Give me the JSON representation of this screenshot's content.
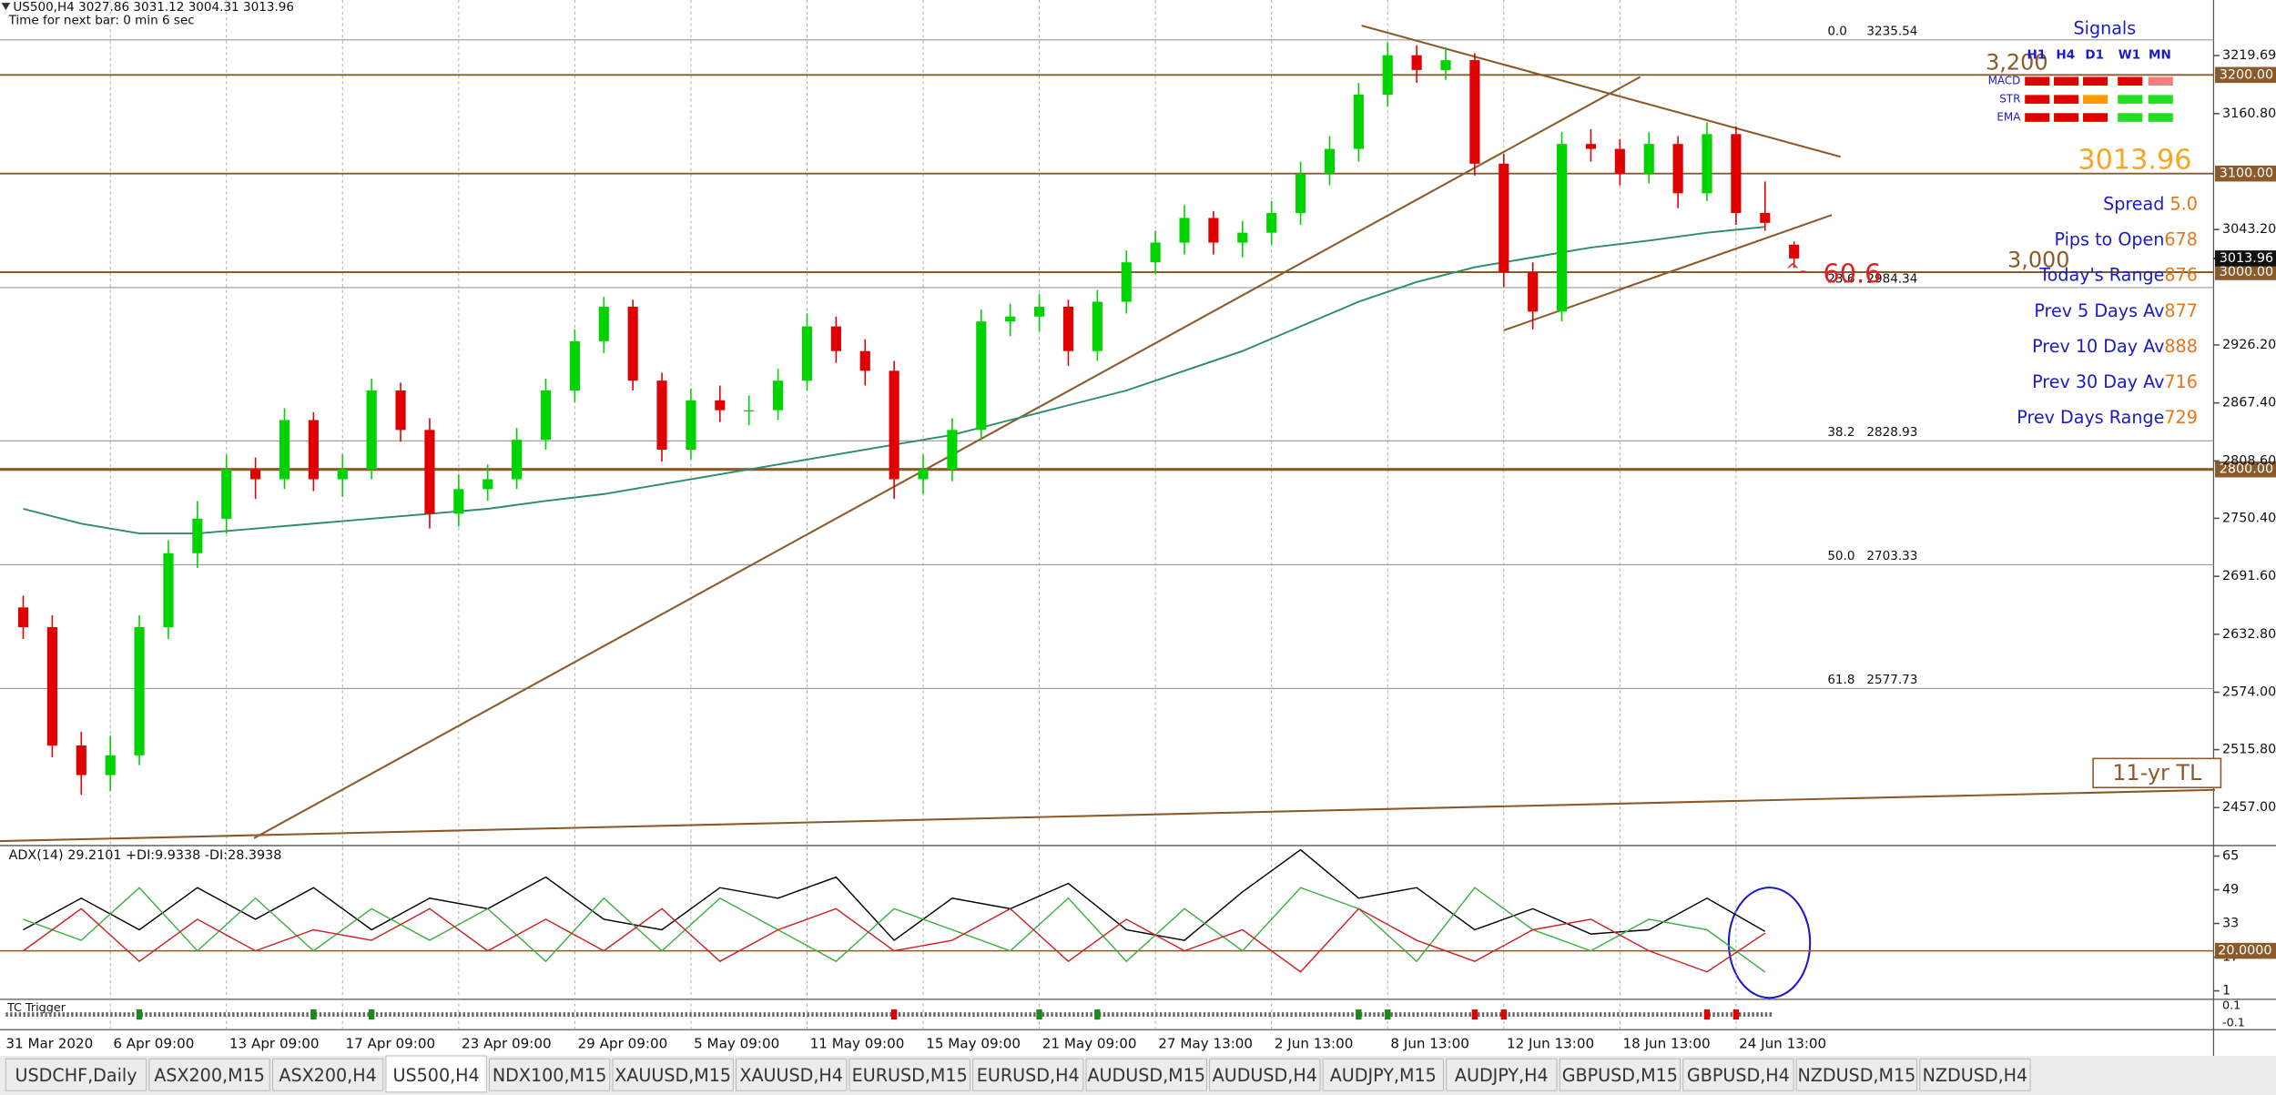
{
  "window": {
    "header": {
      "symbol": "US500,H4",
      "timer": "Time for next bar: 0 min 6 sec"
    },
    "tabs": [
      "USDCHF,Daily",
      "ASX200,M15",
      "ASX200,H4",
      "US500,H4",
      "NDX100,M15",
      "XAUUSD,M15",
      "XAUUSD,H4",
      "EURUSD,M15",
      "EURUSD,H4",
      "AUDUSD,M15",
      "AUDUSD,H4",
      "AUDJPY,M15",
      "AUDJPY,H4",
      "GBPUSD,M15",
      "GBPUSD,H4",
      "NZDUSD,M15",
      "NZDUSD,H4"
    ],
    "active_tab": 3
  },
  "chart_data": [
    {
      "type": "candlestick",
      "categories": [
        "31 Mar 2020",
        null,
        null,
        "6 Apr 09:00",
        null,
        null,
        null,
        "13 Apr 09:00",
        null,
        null,
        null,
        "17 Apr 09:00",
        null,
        null,
        null,
        "23 Apr 09:00",
        null,
        null,
        null,
        "29 Apr 09:00",
        null,
        null,
        null,
        "5 May 09:00",
        null,
        null,
        null,
        "11 May 09:00",
        null,
        null,
        null,
        "15 May 09:00",
        null,
        null,
        null,
        "21 May 09:00",
        null,
        null,
        null,
        "27 May 13:00",
        null,
        null,
        null,
        "2 Jun 13:00",
        null,
        null,
        null,
        "8 Jun 13:00",
        null,
        null,
        null,
        "12 Jun 13:00",
        null,
        null,
        null,
        "18 Jun 13:00",
        null,
        null,
        null,
        "24 Jun 13:00",
        null,
        null
      ],
      "candles": [
        [
          2660,
          2672,
          2628,
          2640
        ],
        [
          2640,
          2652,
          2508,
          2520
        ],
        [
          2520,
          2534,
          2470,
          2490
        ],
        [
          2490,
          2530,
          2474,
          2510
        ],
        [
          2510,
          2652,
          2500,
          2640
        ],
        [
          2640,
          2728,
          2628,
          2715
        ],
        [
          2715,
          2768,
          2700,
          2750
        ],
        [
          2750,
          2815,
          2735,
          2800
        ],
        [
          2800,
          2812,
          2770,
          2790
        ],
        [
          2790,
          2862,
          2780,
          2850
        ],
        [
          2850,
          2858,
          2778,
          2790
        ],
        [
          2790,
          2815,
          2772,
          2800
        ],
        [
          2800,
          2892,
          2790,
          2880
        ],
        [
          2880,
          2888,
          2828,
          2840
        ],
        [
          2840,
          2852,
          2740,
          2755
        ],
        [
          2755,
          2795,
          2742,
          2780
        ],
        [
          2780,
          2805,
          2768,
          2790
        ],
        [
          2790,
          2842,
          2780,
          2830
        ],
        [
          2830,
          2892,
          2820,
          2880
        ],
        [
          2880,
          2942,
          2868,
          2930
        ],
        [
          2930,
          2975,
          2918,
          2965
        ],
        [
          2965,
          2972,
          2880,
          2890
        ],
        [
          2890,
          2898,
          2808,
          2820
        ],
        [
          2820,
          2882,
          2810,
          2870
        ],
        [
          2870,
          2885,
          2848,
          2860
        ],
        [
          2860,
          2875,
          2845,
          2860
        ],
        [
          2860,
          2902,
          2850,
          2890
        ],
        [
          2890,
          2958,
          2880,
          2945
        ],
        [
          2945,
          2955,
          2908,
          2920
        ],
        [
          2920,
          2932,
          2885,
          2900
        ],
        [
          2900,
          2910,
          2770,
          2790
        ],
        [
          2790,
          2815,
          2775,
          2800
        ],
        [
          2800,
          2852,
          2788,
          2840
        ],
        [
          2840,
          2962,
          2830,
          2950
        ],
        [
          2950,
          2968,
          2935,
          2955
        ],
        [
          2955,
          2978,
          2940,
          2965
        ],
        [
          2965,
          2972,
          2905,
          2920
        ],
        [
          2920,
          2982,
          2910,
          2970
        ],
        [
          2970,
          3022,
          2958,
          3010
        ],
        [
          3010,
          3042,
          2998,
          3030
        ],
        [
          3030,
          3068,
          3018,
          3055
        ],
        [
          3055,
          3062,
          3018,
          3030
        ],
        [
          3030,
          3052,
          3015,
          3040
        ],
        [
          3040,
          3072,
          3028,
          3060
        ],
        [
          3060,
          3112,
          3048,
          3100
        ],
        [
          3100,
          3138,
          3088,
          3125
        ],
        [
          3125,
          3192,
          3112,
          3180
        ],
        [
          3180,
          3233,
          3168,
          3220
        ],
        [
          3220,
          3230,
          3192,
          3205
        ],
        [
          3205,
          3228,
          3195,
          3215
        ],
        [
          3215,
          3222,
          3098,
          3110
        ],
        [
          3110,
          3120,
          2985,
          3000
        ],
        [
          3000,
          3010,
          2942,
          2960
        ],
        [
          2960,
          3142,
          2950,
          3130
        ],
        [
          3130,
          3145,
          3112,
          3125
        ],
        [
          3125,
          3135,
          3088,
          3100
        ],
        [
          3100,
          3142,
          3090,
          3130
        ],
        [
          3130,
          3138,
          3065,
          3080
        ],
        [
          3080,
          3152,
          3072,
          3140
        ],
        [
          3140,
          3148,
          3048,
          3060
        ],
        [
          3060,
          3092,
          3042,
          3050
        ],
        [
          3027.86,
          3031.12,
          3004.31,
          3013.96
        ]
      ],
      "colors": {
        "up": "#00d400",
        "down": "#e00000"
      },
      "ylim": [
        2420,
        3276
      ],
      "yticks": [
        3219.69,
        {
          "value": 3160.8,
          "label": "3160.80"
        },
        {
          "value": 3043.2,
          "label": "3043.20"
        },
        {
          "value": 2926.2,
          "label": "2926.20"
        },
        {
          "value": 2867.4,
          "label": "2867.40"
        },
        {
          "value": 2808.6,
          "label": "2808.60"
        },
        {
          "value": 2750.4,
          "label": "2750.40"
        },
        {
          "value": 2691.6,
          "label": "2691.60"
        },
        {
          "value": 2632.8,
          "label": "2632.80"
        },
        {
          "value": 2574,
          "label": "2574.00"
        },
        {
          "value": 2515.8,
          "label": "2515.80"
        },
        {
          "value": 2457,
          "label": "2457.00"
        }
      ],
      "ma": {
        "color": "#2e8b6e",
        "values": [
          2760,
          2745,
          2735,
          2735,
          2740,
          2745,
          2750,
          2755,
          2760,
          2768,
          2775,
          2785,
          2795,
          2805,
          2815,
          2825,
          2835,
          2850,
          2865,
          2880,
          2900,
          2920,
          2945,
          2970,
          2990,
          3005,
          3015,
          3025,
          3032,
          3040,
          3046
        ]
      },
      "levels": [
        {
          "value": 3200,
          "label": "3200.00",
          "tag": "3,200"
        },
        {
          "value": 3100,
          "label": "3100.00"
        },
        {
          "value": 3000,
          "label": "3000.00",
          "tag": "3,000"
        },
        {
          "value": 2800,
          "label": "2800.00"
        }
      ],
      "level_color": "#8b5a2b",
      "fibs": [
        {
          "level": "0.0",
          "value": 3235.54
        },
        {
          "level": "23.6",
          "value": 2984.34
        },
        {
          "level": "38.2",
          "value": 2828.93
        },
        {
          "level": "50.0",
          "value": 2703.33
        },
        {
          "level": "61.8",
          "value": 2577.73
        }
      ],
      "trendlines": [
        {
          "from": [
            7.95,
            2426
          ],
          "to": [
            55.7,
            3198
          ]
        },
        {
          "from": [
            46.1,
            3250
          ],
          "to": [
            62.6,
            3117
          ]
        },
        {
          "from": [
            51,
            2941
          ],
          "to": [
            62.3,
            3058
          ]
        },
        {
          "from": [
            -0.8,
            2423
          ],
          "to": [
            75.5,
            2475
          ]
        }
      ],
      "trendline_label": "11-yr TL",
      "marker": {
        "arrow": "^-",
        "text": "60.6"
      }
    },
    {
      "type": "line",
      "title": "ADX(14) 29.2101 +DI:9.9338 -DI:28.3938",
      "ylim": [
        -3,
        70
      ],
      "yticks": [
        65,
        49,
        33,
        17,
        1
      ],
      "level": {
        "value": 20,
        "label": "20.0000"
      },
      "series": [
        {
          "name": "ADX",
          "color": "#000000",
          "values": [
            30,
            45,
            30,
            50,
            35,
            50,
            30,
            45,
            40,
            55,
            35,
            30,
            50,
            45,
            55,
            25,
            45,
            40,
            52,
            30,
            25,
            48,
            68,
            45,
            50,
            30,
            40,
            28,
            30,
            45,
            29.2101
          ]
        },
        {
          "name": "+DI",
          "color": "#3cb043",
          "values": [
            35,
            25,
            50,
            20,
            45,
            20,
            40,
            25,
            40,
            15,
            45,
            20,
            45,
            30,
            15,
            40,
            30,
            20,
            45,
            15,
            40,
            20,
            50,
            40,
            15,
            50,
            30,
            20,
            35,
            30,
            9.9338
          ]
        },
        {
          "name": "-DI",
          "color": "#cc2222",
          "values": [
            20,
            40,
            15,
            35,
            20,
            30,
            25,
            40,
            20,
            35,
            20,
            40,
            15,
            30,
            40,
            20,
            25,
            40,
            15,
            35,
            20,
            30,
            10,
            40,
            25,
            15,
            30,
            35,
            20,
            10,
            28.3938
          ]
        }
      ]
    }
  ],
  "tc_trigger": {
    "title": "TC Trigger",
    "ticks": [
      0.1,
      -0.1
    ]
  },
  "signals": {
    "title": "Signals",
    "columns": [
      "H1",
      "H4",
      "D1",
      "W1",
      "MN"
    ],
    "rows": [
      {
        "name": "MACD",
        "colors": [
          "#e00000",
          "#e00000",
          "#e00000",
          "#e00000",
          "#f08080"
        ]
      },
      {
        "name": "STR",
        "colors": [
          "#e00000",
          "#e00000",
          "#ff9900",
          "#22dd22",
          "#22dd22"
        ]
      },
      {
        "name": "EMA",
        "colors": [
          "#e00000",
          "#e00000",
          "#e00000",
          "#22dd22",
          "#22dd22"
        ]
      }
    ]
  },
  "info": [
    {
      "label": "Spread ",
      "value": "5.0"
    },
    {
      "label": "Pips to Open",
      "value": 678
    },
    {
      "label": "Today's Range",
      "value": 876
    },
    {
      "label": "Prev 5 Days Av",
      "value": 877
    },
    {
      "label": "Prev 10 Day Av",
      "value": 888
    },
    {
      "label": "Prev 30 Day Av",
      "value": 716
    },
    {
      "label": "Prev Days Range",
      "value": 729
    }
  ]
}
